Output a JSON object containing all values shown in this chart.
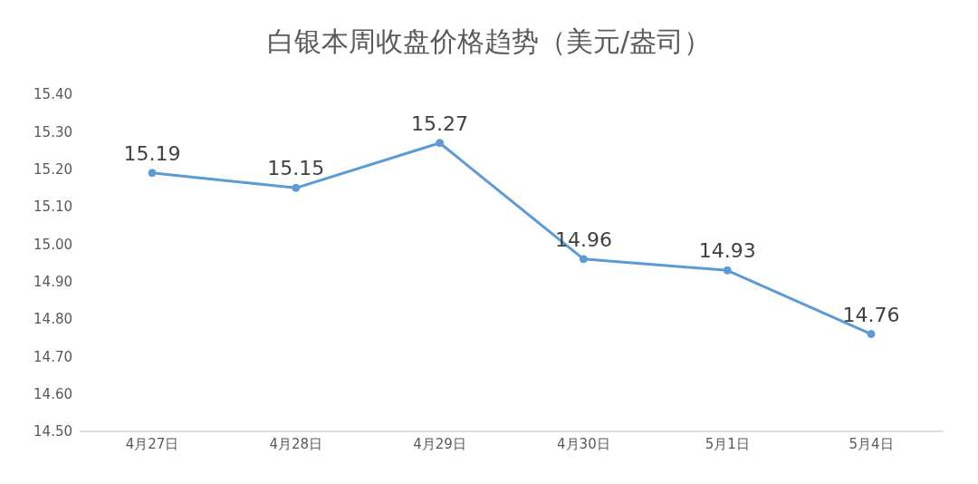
{
  "chart_data": {
    "type": "line",
    "title": "白银本周收盘价格趋势（美元/盎司）",
    "categories": [
      "4月27日",
      "4月28日",
      "4月29日",
      "4月30日",
      "5月1日",
      "5月4日"
    ],
    "series": [
      {
        "color": "#5b9bd5",
        "values": [
          15.19,
          15.15,
          15.27,
          14.96,
          14.93,
          14.76
        ]
      }
    ],
    "ylim": [
      14.5,
      15.4
    ],
    "yticks": [
      {
        "value": 14.5,
        "label": "14.50"
      },
      {
        "value": 14.6,
        "label": "14.60"
      },
      {
        "value": 14.7,
        "label": "14.70"
      },
      {
        "value": 14.8,
        "label": "14.80"
      },
      {
        "value": 14.9,
        "label": "14.90"
      },
      {
        "value": 15.0,
        "label": "15.00"
      },
      {
        "value": 15.1,
        "label": "15.10"
      },
      {
        "value": 15.2,
        "label": "15.20"
      },
      {
        "value": 15.3,
        "label": "15.30"
      },
      {
        "value": 15.4,
        "label": "15.40"
      }
    ],
    "grid": false,
    "marker": "circle",
    "line_style": "solid",
    "data_labels": true
  }
}
